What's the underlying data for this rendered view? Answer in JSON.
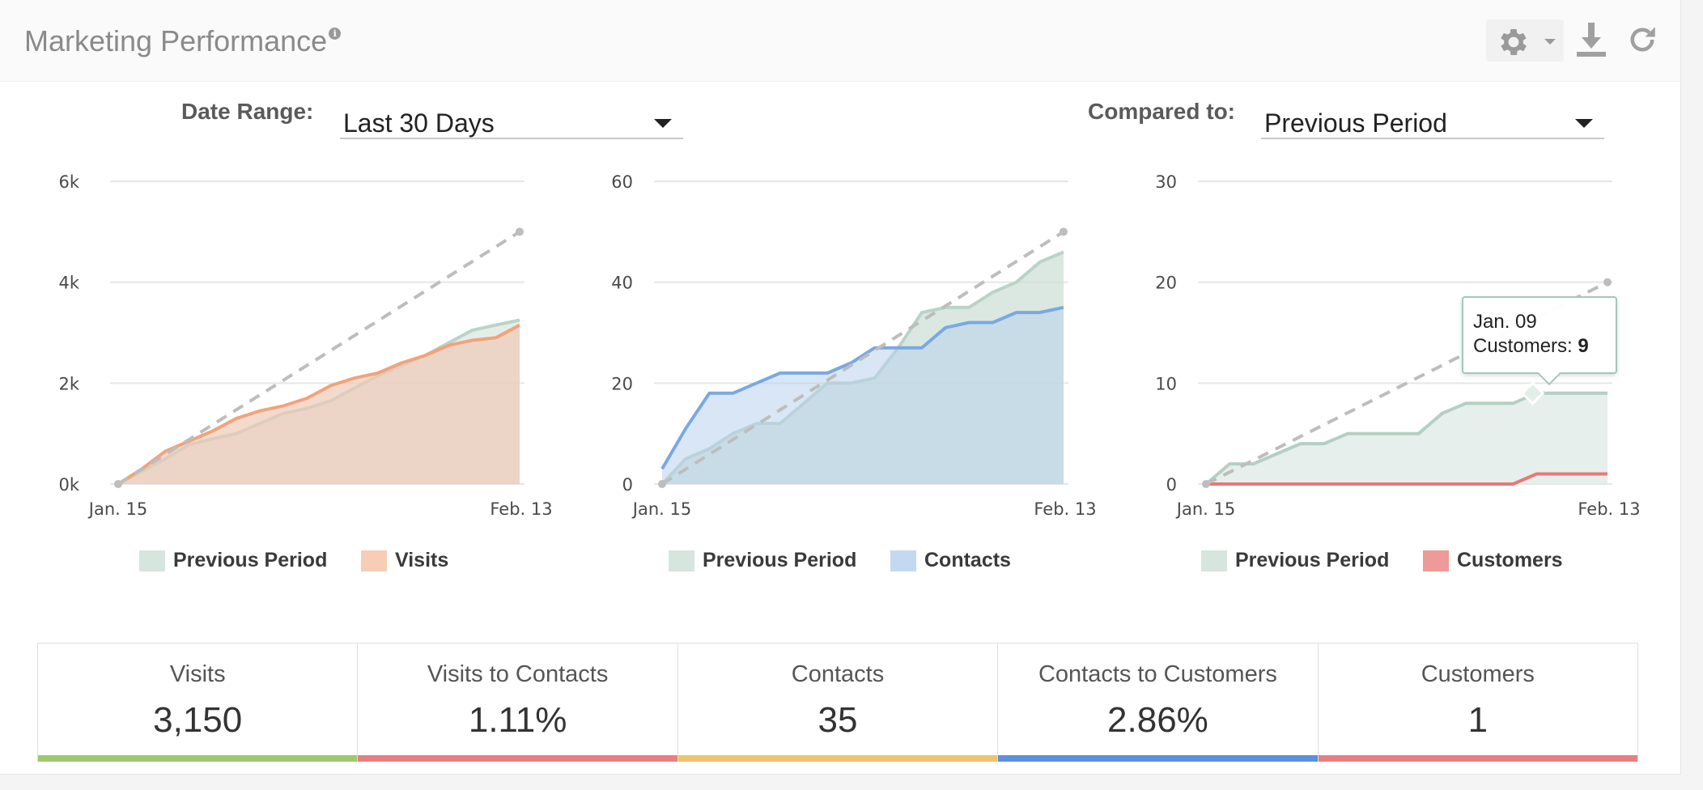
{
  "header": {
    "title": "Marketing Performance",
    "info_glyph": "i",
    "icons": [
      "gear-icon",
      "chevron-down-icon",
      "download-icon",
      "refresh-icon"
    ]
  },
  "filters": {
    "date_range_label": "Date Range:",
    "date_range_value": "Last 30 Days",
    "compared_to_label": "Compared to:",
    "compared_to_value": "Previous Period"
  },
  "colors": {
    "previous_period": "#b9d3c8",
    "visits": "#f2a37a",
    "contacts": "#7aa9e0",
    "customers": "#e87878",
    "goal_line": "#bdbdbd"
  },
  "chart_data": [
    {
      "type": "area",
      "x_ticks": [
        "Jan. 15",
        "Feb. 13"
      ],
      "y_ticks": [
        "0k",
        "2k",
        "4k",
        "6k"
      ],
      "ylim": [
        0,
        6000
      ],
      "series": [
        {
          "name": "Previous Period",
          "values": [
            0,
            250,
            500,
            780,
            900,
            1000,
            1200,
            1400,
            1500,
            1650,
            1900,
            2150,
            2350,
            2550,
            2800,
            3050,
            3150,
            3250
          ]
        },
        {
          "name": "Visits",
          "values": [
            0,
            300,
            650,
            850,
            1050,
            1300,
            1450,
            1550,
            1700,
            1950,
            2100,
            2200,
            2400,
            2550,
            2750,
            2850,
            2900,
            3150
          ]
        }
      ],
      "goal_line": {
        "from": 0,
        "to": 5000
      },
      "legend": [
        "Previous Period",
        "Visits"
      ],
      "legend_position": "bottom"
    },
    {
      "type": "area",
      "x_ticks": [
        "Jan. 15",
        "Feb. 13"
      ],
      "y_ticks": [
        "0",
        "20",
        "40",
        "60"
      ],
      "ylim": [
        0,
        60
      ],
      "series": [
        {
          "name": "Previous Period",
          "values": [
            0,
            5,
            7,
            10,
            12,
            12,
            16,
            20,
            20,
            21,
            27,
            34,
            35,
            35,
            38,
            40,
            44,
            46
          ]
        },
        {
          "name": "Contacts",
          "values": [
            3,
            11,
            18,
            18,
            20,
            22,
            22,
            22,
            24,
            27,
            27,
            27,
            31,
            32,
            32,
            34,
            34,
            35
          ]
        }
      ],
      "goal_line": {
        "from": 0,
        "to": 50
      },
      "legend": [
        "Previous Period",
        "Contacts"
      ],
      "legend_position": "bottom"
    },
    {
      "type": "area",
      "x_ticks": [
        "Jan. 15",
        "Feb. 13"
      ],
      "y_ticks": [
        "0",
        "10",
        "20",
        "30"
      ],
      "ylim": [
        0,
        30
      ],
      "series": [
        {
          "name": "Previous Period",
          "values": [
            0,
            2,
            2,
            3,
            4,
            4,
            5,
            5,
            5,
            5,
            7,
            8,
            8,
            8,
            9,
            9,
            9,
            9
          ]
        },
        {
          "name": "Customers",
          "values": [
            0,
            0,
            0,
            0,
            0,
            0,
            0,
            0,
            0,
            0,
            0,
            0,
            0,
            0,
            1,
            1,
            1,
            1
          ]
        }
      ],
      "goal_line": {
        "from": 0,
        "to": 20
      },
      "legend": [
        "Previous Period",
        "Customers"
      ],
      "legend_position": "bottom",
      "tooltip": {
        "date": "Jan. 09",
        "label": "Customers:",
        "value": "9"
      }
    }
  ],
  "stats": [
    {
      "label": "Visits",
      "value": "3,150",
      "color": "#9cc96b"
    },
    {
      "label": "Visits to Contacts",
      "value": "1.11%",
      "color": "#e87f7f"
    },
    {
      "label": "Contacts",
      "value": "35",
      "color": "#f0c36b"
    },
    {
      "label": "Contacts to Customers",
      "value": "2.86%",
      "color": "#5b8fe0"
    },
    {
      "label": "Customers",
      "value": "1",
      "color": "#e87f7f"
    }
  ]
}
